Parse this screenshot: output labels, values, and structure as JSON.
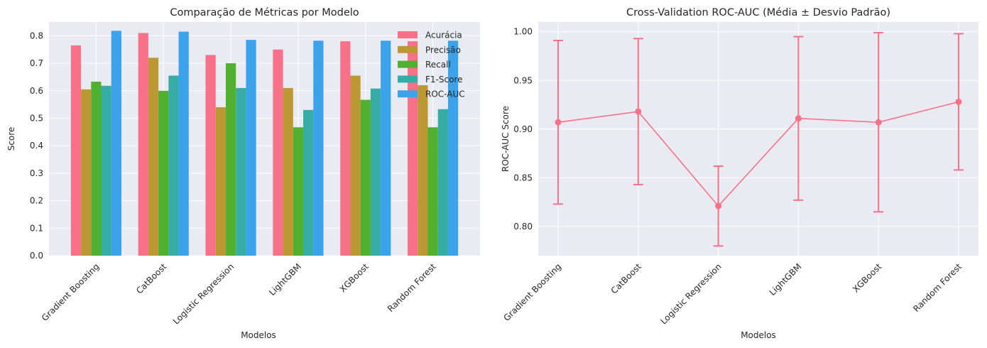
{
  "chart_data": [
    {
      "type": "bar",
      "title": "Comparação de Métricas por Modelo",
      "xlabel": "Modelos",
      "ylabel": "Score",
      "ylim": [
        0,
        0.85
      ],
      "yticks": [
        "0.0",
        "0.1",
        "0.2",
        "0.3",
        "0.4",
        "0.5",
        "0.6",
        "0.7",
        "0.8"
      ],
      "grid": true,
      "legend_placement": "top-right",
      "categories": [
        "Gradient Boosting",
        "CatBoost",
        "Logistic Regression",
        "LightGBM",
        "XGBoost",
        "Random Forest"
      ],
      "series": [
        {
          "name": "Acurácia",
          "color": "#f77189",
          "values": [
            0.765,
            0.81,
            0.73,
            0.75,
            0.78,
            0.78
          ]
        },
        {
          "name": "Precisão",
          "color": "#bb9832",
          "values": [
            0.605,
            0.72,
            0.54,
            0.61,
            0.655,
            0.62
          ]
        },
        {
          "name": "Recall",
          "color": "#50b131",
          "values": [
            0.633,
            0.6,
            0.7,
            0.467,
            0.567,
            0.467
          ]
        },
        {
          "name": "F1-Score",
          "color": "#36ada4",
          "values": [
            0.618,
            0.655,
            0.61,
            0.53,
            0.608,
            0.533
          ]
        },
        {
          "name": "ROC-AUC",
          "color": "#3ba3ec",
          "values": [
            0.818,
            0.815,
            0.785,
            0.782,
            0.782,
            0.782
          ]
        }
      ]
    },
    {
      "type": "line",
      "title": "Cross-Validation ROC-AUC (Média ± Desvio Padrão)",
      "xlabel": "Modelos",
      "ylabel": "ROC-AUC Score",
      "ylim": [
        0.77,
        1.01
      ],
      "yticks": [
        "0.80",
        "0.85",
        "0.90",
        "0.95",
        "1.00"
      ],
      "grid": true,
      "categories": [
        "Gradient Boosting",
        "CatBoost",
        "Logistic Regression",
        "LightGBM",
        "XGBoost",
        "Random Forest"
      ],
      "series": [
        {
          "color": "#f77189",
          "values": [
            0.907,
            0.918,
            0.821,
            0.911,
            0.907,
            0.928
          ],
          "error": [
            0.084,
            0.075,
            0.041,
            0.084,
            0.092,
            0.07
          ]
        }
      ]
    }
  ]
}
